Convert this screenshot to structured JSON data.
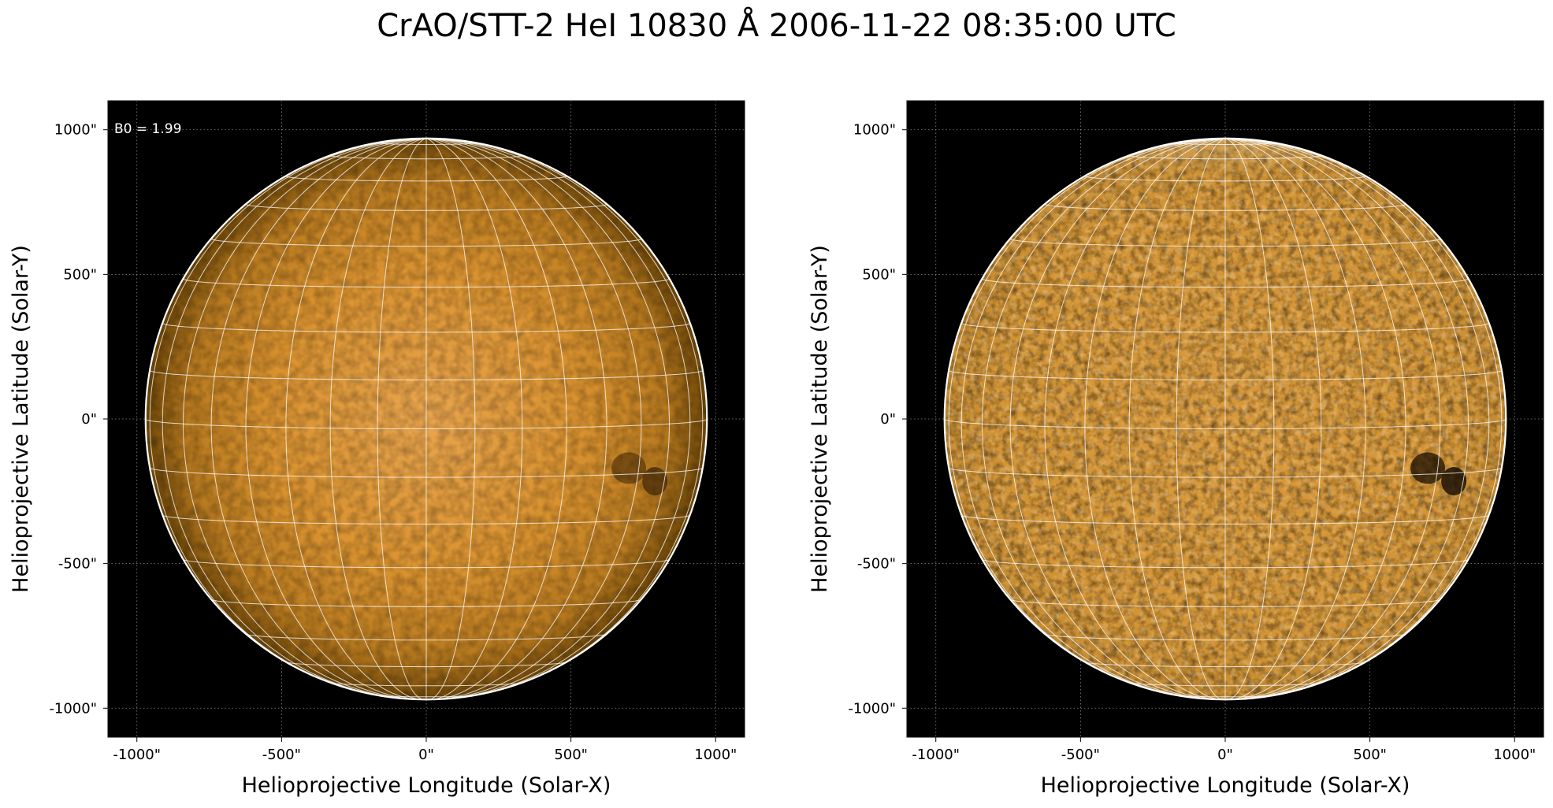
{
  "title": "CrAO/STT-2 HeI 10830 Å 2006-11-22 08:35:00 UTC",
  "colors": {
    "disk_left_center": "#e7a14a",
    "disk_left_edge": "#6d4608",
    "disk_right_center": "#d79a3a",
    "disk_right_bright": "#f3d8a8",
    "background": "#000000",
    "grid": "#ffffff"
  },
  "panels": [
    {
      "id": "left",
      "annotation": "B0 = 1.99",
      "xlabel": "Helioprojective Longitude (Solar-X)",
      "ylabel": "Helioprojective Latitude (Solar-Y)",
      "xticks": [
        "-1000\"",
        "-500\"",
        "0\"",
        "500\"",
        "1000\""
      ],
      "yticks": [
        "1000\"",
        "500\"",
        "0\"",
        "-500\"",
        "-1000\""
      ],
      "xlim": [
        -1100,
        1100
      ],
      "ylim": [
        -1100,
        1100
      ],
      "solar_radius_arcsec": 970
    },
    {
      "id": "right",
      "annotation": "",
      "xlabel": "Helioprojective Longitude (Solar-X)",
      "ylabel": "Helioprojective Latitude (Solar-Y)",
      "xticks": [
        "-1000\"",
        "-500\"",
        "0\"",
        "500\"",
        "1000\""
      ],
      "yticks": [
        "1000\"",
        "500\"",
        "0\"",
        "-500\"",
        "-1000\""
      ],
      "xlim": [
        -1100,
        1100
      ],
      "ylim": [
        -1100,
        1100
      ],
      "solar_radius_arcsec": 970
    }
  ]
}
